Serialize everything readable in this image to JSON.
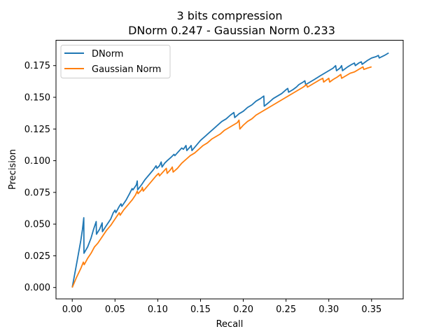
{
  "chart_data": {
    "type": "line",
    "title_line1": "3 bits compression",
    "title_line2": "DNorm 0.247 - Gaussian Norm 0.233",
    "xlabel": "Recall",
    "ylabel": "Precision",
    "xlim": [
      -0.019,
      0.387
    ],
    "ylim": [
      -0.009,
      0.195
    ],
    "xticks": [
      0.0,
      0.05,
      0.1,
      0.15,
      0.2,
      0.25,
      0.3,
      0.35
    ],
    "xtick_labels": [
      "0.00",
      "0.05",
      "0.10",
      "0.15",
      "0.20",
      "0.25",
      "0.30",
      "0.35"
    ],
    "yticks": [
      0.0,
      0.025,
      0.05,
      0.075,
      0.1,
      0.125,
      0.15,
      0.175
    ],
    "ytick_labels": [
      "0.000",
      "0.025",
      "0.050",
      "0.075",
      "0.100",
      "0.125",
      "0.150",
      "0.175"
    ],
    "grid": false,
    "legend_position": "top-left",
    "series": [
      {
        "name": "DNorm",
        "color": "#1f77b4",
        "points": [
          [
            0.0,
            0.0
          ],
          [
            0.006,
            0.022
          ],
          [
            0.01,
            0.037
          ],
          [
            0.012,
            0.046
          ],
          [
            0.0135,
            0.055
          ],
          [
            0.0137,
            0.027
          ],
          [
            0.018,
            0.032
          ],
          [
            0.022,
            0.039
          ],
          [
            0.025,
            0.046
          ],
          [
            0.028,
            0.052
          ],
          [
            0.0283,
            0.042
          ],
          [
            0.032,
            0.046
          ],
          [
            0.035,
            0.051
          ],
          [
            0.0353,
            0.044
          ],
          [
            0.04,
            0.049
          ],
          [
            0.045,
            0.054
          ],
          [
            0.048,
            0.059
          ],
          [
            0.05,
            0.061
          ],
          [
            0.051,
            0.059
          ],
          [
            0.055,
            0.064
          ],
          [
            0.057,
            0.066
          ],
          [
            0.058,
            0.064
          ],
          [
            0.063,
            0.069
          ],
          [
            0.067,
            0.074
          ],
          [
            0.07,
            0.078
          ],
          [
            0.071,
            0.077
          ],
          [
            0.075,
            0.081
          ],
          [
            0.076,
            0.084
          ],
          [
            0.0765,
            0.077
          ],
          [
            0.081,
            0.081
          ],
          [
            0.085,
            0.085
          ],
          [
            0.09,
            0.089
          ],
          [
            0.095,
            0.093
          ],
          [
            0.098,
            0.096
          ],
          [
            0.099,
            0.094
          ],
          [
            0.102,
            0.096
          ],
          [
            0.104,
            0.099
          ],
          [
            0.105,
            0.095
          ],
          [
            0.108,
            0.098
          ],
          [
            0.111,
            0.1
          ],
          [
            0.116,
            0.103
          ],
          [
            0.119,
            0.105
          ],
          [
            0.12,
            0.104
          ],
          [
            0.124,
            0.107
          ],
          [
            0.128,
            0.11
          ],
          [
            0.13,
            0.109
          ],
          [
            0.133,
            0.112
          ],
          [
            0.134,
            0.108
          ],
          [
            0.138,
            0.111
          ],
          [
            0.139,
            0.112
          ],
          [
            0.14,
            0.108
          ],
          [
            0.145,
            0.112
          ],
          [
            0.15,
            0.116
          ],
          [
            0.155,
            0.119
          ],
          [
            0.16,
            0.122
          ],
          [
            0.165,
            0.125
          ],
          [
            0.17,
            0.128
          ],
          [
            0.175,
            0.131
          ],
          [
            0.18,
            0.133
          ],
          [
            0.185,
            0.136
          ],
          [
            0.189,
            0.138
          ],
          [
            0.19,
            0.134
          ],
          [
            0.195,
            0.137
          ],
          [
            0.2,
            0.139
          ],
          [
            0.205,
            0.142
          ],
          [
            0.21,
            0.144
          ],
          [
            0.215,
            0.147
          ],
          [
            0.22,
            0.149
          ],
          [
            0.224,
            0.151
          ],
          [
            0.2245,
            0.143
          ],
          [
            0.23,
            0.146
          ],
          [
            0.235,
            0.149
          ],
          [
            0.24,
            0.151
          ],
          [
            0.245,
            0.153
          ],
          [
            0.25,
            0.156
          ],
          [
            0.252,
            0.157
          ],
          [
            0.253,
            0.154
          ],
          [
            0.258,
            0.156
          ],
          [
            0.262,
            0.158
          ],
          [
            0.265,
            0.16
          ],
          [
            0.27,
            0.162
          ],
          [
            0.272,
            0.163
          ],
          [
            0.273,
            0.16
          ],
          [
            0.278,
            0.162
          ],
          [
            0.283,
            0.164
          ],
          [
            0.29,
            0.167
          ],
          [
            0.295,
            0.169
          ],
          [
            0.3,
            0.171
          ],
          [
            0.305,
            0.173
          ],
          [
            0.308,
            0.175
          ],
          [
            0.309,
            0.171
          ],
          [
            0.313,
            0.173
          ],
          [
            0.315,
            0.175
          ],
          [
            0.316,
            0.171
          ],
          [
            0.322,
            0.174
          ],
          [
            0.327,
            0.176
          ],
          [
            0.33,
            0.177
          ],
          [
            0.331,
            0.175
          ],
          [
            0.335,
            0.177
          ],
          [
            0.338,
            0.178
          ],
          [
            0.339,
            0.176
          ],
          [
            0.345,
            0.179
          ],
          [
            0.35,
            0.181
          ],
          [
            0.355,
            0.182
          ],
          [
            0.358,
            0.183
          ],
          [
            0.359,
            0.181
          ],
          [
            0.365,
            0.183
          ],
          [
            0.37,
            0.185
          ]
        ]
      },
      {
        "name": "Gaussian Norm",
        "color": "#ff7f0e",
        "points": [
          [
            0.0,
            0.0
          ],
          [
            0.005,
            0.008
          ],
          [
            0.01,
            0.015
          ],
          [
            0.013,
            0.02
          ],
          [
            0.014,
            0.018
          ],
          [
            0.018,
            0.023
          ],
          [
            0.022,
            0.027
          ],
          [
            0.026,
            0.032
          ],
          [
            0.03,
            0.035
          ],
          [
            0.035,
            0.04
          ],
          [
            0.04,
            0.045
          ],
          [
            0.045,
            0.049
          ],
          [
            0.05,
            0.054
          ],
          [
            0.055,
            0.059
          ],
          [
            0.056,
            0.057
          ],
          [
            0.06,
            0.061
          ],
          [
            0.065,
            0.065
          ],
          [
            0.07,
            0.069
          ],
          [
            0.074,
            0.073
          ],
          [
            0.076,
            0.076
          ],
          [
            0.077,
            0.074
          ],
          [
            0.081,
            0.077
          ],
          [
            0.082,
            0.079
          ],
          [
            0.083,
            0.076
          ],
          [
            0.088,
            0.08
          ],
          [
            0.093,
            0.084
          ],
          [
            0.098,
            0.088
          ],
          [
            0.101,
            0.09
          ],
          [
            0.102,
            0.088
          ],
          [
            0.106,
            0.091
          ],
          [
            0.11,
            0.094
          ],
          [
            0.111,
            0.09
          ],
          [
            0.115,
            0.093
          ],
          [
            0.117,
            0.095
          ],
          [
            0.118,
            0.091
          ],
          [
            0.123,
            0.094
          ],
          [
            0.128,
            0.098
          ],
          [
            0.133,
            0.101
          ],
          [
            0.138,
            0.104
          ],
          [
            0.143,
            0.106
          ],
          [
            0.148,
            0.109
          ],
          [
            0.153,
            0.112
          ],
          [
            0.158,
            0.114
          ],
          [
            0.163,
            0.117
          ],
          [
            0.168,
            0.119
          ],
          [
            0.173,
            0.121
          ],
          [
            0.178,
            0.124
          ],
          [
            0.183,
            0.126
          ],
          [
            0.188,
            0.128
          ],
          [
            0.193,
            0.13
          ],
          [
            0.195,
            0.132
          ],
          [
            0.196,
            0.125
          ],
          [
            0.2,
            0.128
          ],
          [
            0.205,
            0.131
          ],
          [
            0.21,
            0.133
          ],
          [
            0.215,
            0.136
          ],
          [
            0.22,
            0.138
          ],
          [
            0.225,
            0.14
          ],
          [
            0.23,
            0.142
          ],
          [
            0.235,
            0.144
          ],
          [
            0.24,
            0.146
          ],
          [
            0.245,
            0.148
          ],
          [
            0.25,
            0.15
          ],
          [
            0.255,
            0.152
          ],
          [
            0.26,
            0.154
          ],
          [
            0.265,
            0.156
          ],
          [
            0.27,
            0.158
          ],
          [
            0.274,
            0.16
          ],
          [
            0.275,
            0.158
          ],
          [
            0.28,
            0.16
          ],
          [
            0.285,
            0.162
          ],
          [
            0.29,
            0.164
          ],
          [
            0.293,
            0.165
          ],
          [
            0.294,
            0.162
          ],
          [
            0.298,
            0.164
          ],
          [
            0.3,
            0.165
          ],
          [
            0.301,
            0.162
          ],
          [
            0.305,
            0.164
          ],
          [
            0.31,
            0.166
          ],
          [
            0.314,
            0.168
          ],
          [
            0.315,
            0.165
          ],
          [
            0.32,
            0.167
          ],
          [
            0.325,
            0.169
          ],
          [
            0.33,
            0.17
          ],
          [
            0.335,
            0.172
          ],
          [
            0.34,
            0.174
          ],
          [
            0.341,
            0.172
          ],
          [
            0.345,
            0.173
          ],
          [
            0.35,
            0.174
          ]
        ]
      }
    ]
  }
}
